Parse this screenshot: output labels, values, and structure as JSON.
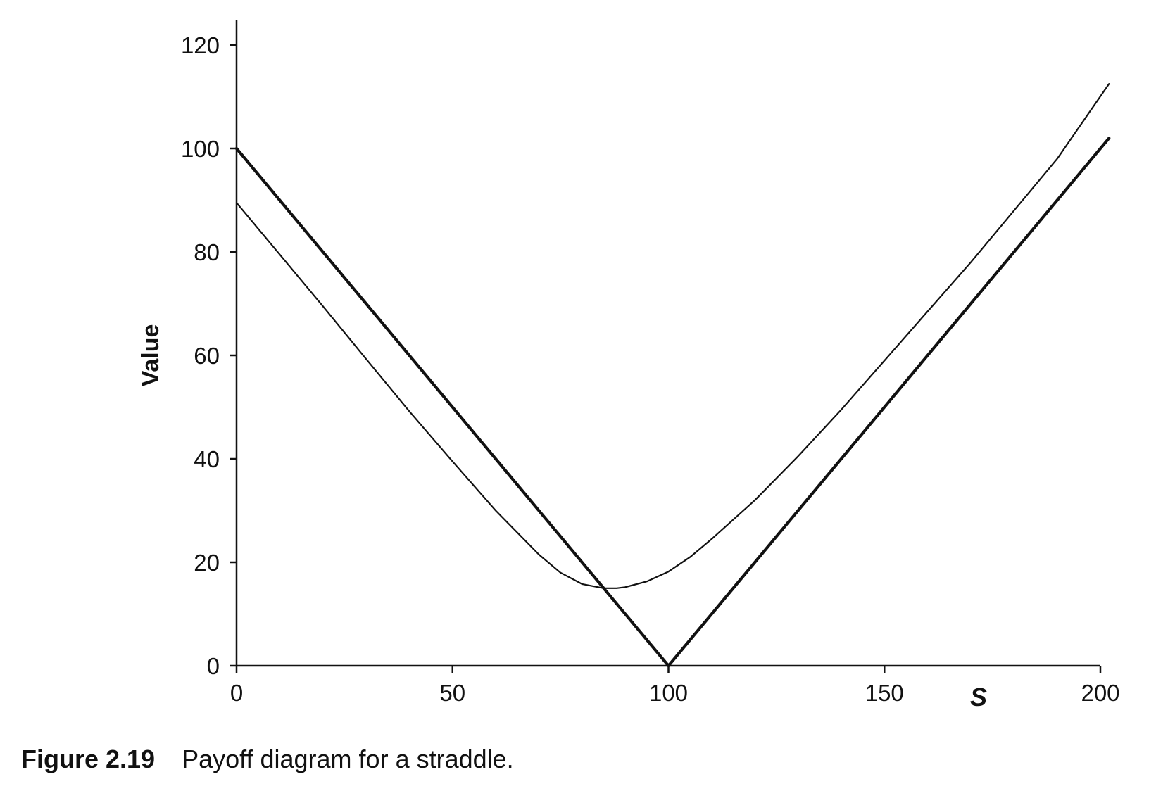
{
  "chart_data": {
    "type": "line",
    "xlabel": "S",
    "ylabel": "Value",
    "xlim": [
      0,
      200
    ],
    "ylim": [
      0,
      120
    ],
    "xticks": [
      0,
      50,
      100,
      150,
      200
    ],
    "yticks": [
      0,
      20,
      40,
      60,
      80,
      100,
      120
    ],
    "xtick_labels": [
      "0",
      "50",
      "100",
      "150",
      "200"
    ],
    "ytick_labels": [
      "0",
      "20",
      "40",
      "60",
      "80",
      "100",
      "120"
    ],
    "grid": false,
    "legend": "none",
    "series": [
      {
        "style": "thick",
        "color": "#111111",
        "x": [
          0,
          100,
          202
        ],
        "y": [
          100,
          0,
          102
        ]
      },
      {
        "style": "thin",
        "color": "#111111",
        "x": [
          0,
          10,
          20,
          30,
          40,
          50,
          60,
          70,
          75,
          80,
          85,
          88,
          90,
          95,
          100,
          105,
          110,
          120,
          130,
          140,
          150,
          160,
          170,
          180,
          190,
          202
        ],
        "y": [
          89.5,
          79.5,
          69.5,
          59.3,
          49.2,
          39.5,
          30,
          21.5,
          18,
          15.8,
          15,
          15,
          15.2,
          16.3,
          18.2,
          21,
          24.5,
          32,
          40.5,
          49.5,
          59,
          68.5,
          78,
          88,
          98,
          112.5
        ]
      }
    ]
  },
  "caption": {
    "label": "Figure 2.19",
    "text": "Payoff diagram for a straddle."
  }
}
